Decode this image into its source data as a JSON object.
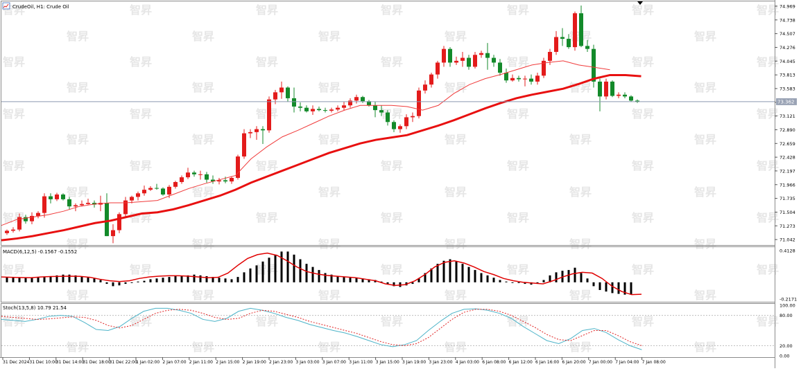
{
  "colors": {
    "up": "#e31b1b",
    "down": "#138a2a",
    "ma_slow": "#e81010",
    "ma_fast": "#f03a3a",
    "macd_hist": "#000000",
    "macd_signal": "#e00000",
    "stoch_main": "#4bb3c8",
    "stoch_signal": "#e02020",
    "grid": "#bcbcbc",
    "price_line": "#8a96b0",
    "watermark": "#e6e6e6"
  },
  "title": "CrudeOil, H1:  Crude Oil",
  "watermark": "智昇",
  "price_tag": "73.362",
  "price_ticks": [
    "74.969",
    "74.738",
    "74.507",
    "74.276",
    "74.045",
    "73.813",
    "73.583",
    "73.352",
    "73.121",
    "72.890",
    "72.659",
    "72.428",
    "72.197",
    "71.966",
    "71.735",
    "71.504",
    "71.273",
    "71.042"
  ],
  "macd_label": "MACD(6,12,5) -0.1567 -0.1552",
  "macd_ticks": [
    "0.4128",
    "-0.2171"
  ],
  "stoch_label": "Stoch(13,5,8) 10.79 21.54",
  "stoch_ticks": [
    "100.00",
    "80.00",
    "20.00",
    "0.00"
  ],
  "time_labels": [
    "31 Dec 2024",
    "31 Dec 10:00",
    "31 Dec 14:00",
    "31 Dec 18:00",
    "31 Dec 22:00",
    "1 Jan 02:00",
    "2 Jan 07:00",
    "2 Jan 11:00",
    "2 Jan 15:00",
    "2 Jan 19:00",
    "2 Jan 23:00",
    "3 Jan 03:00",
    "3 Jan 07:00",
    "3 Jan 11:00",
    "3 Jan 15:00",
    "3 Jan 19:00",
    "3 Jan 23:00",
    "4 Jan 03:00",
    "6 Jan 08:00",
    "6 Jan 12:00",
    "6 Jan 16:00",
    "6 Jan 20:00",
    "7 Jan 00:00",
    "7 Jan 04:00",
    "7 Jan 08:00"
  ],
  "chart_data": [
    {
      "type": "candlestick",
      "title": "CrudeOil, H1:  Crude Oil",
      "ylim": [
        70.95,
        75.05
      ],
      "current_price": 73.362,
      "candles": [
        [
          71.15,
          71.21,
          71.12,
          71.19
        ],
        [
          71.19,
          71.25,
          71.16,
          71.21
        ],
        [
          71.21,
          71.48,
          71.18,
          71.42
        ],
        [
          71.42,
          71.46,
          71.31,
          71.35
        ],
        [
          71.35,
          71.5,
          71.3,
          71.44
        ],
        [
          71.44,
          71.52,
          71.4,
          71.49
        ],
        [
          71.49,
          71.82,
          71.41,
          71.77
        ],
        [
          71.77,
          71.82,
          71.65,
          71.72
        ],
        [
          71.72,
          71.83,
          71.69,
          71.8
        ],
        [
          71.8,
          71.82,
          71.7,
          71.72
        ],
        [
          71.72,
          71.76,
          71.55,
          71.6
        ],
        [
          71.6,
          71.65,
          71.52,
          71.62
        ],
        [
          71.62,
          71.7,
          71.6,
          71.64
        ],
        [
          71.64,
          71.73,
          71.63,
          71.66
        ],
        [
          71.66,
          71.7,
          71.58,
          71.63
        ],
        [
          71.63,
          71.78,
          71.52,
          71.66
        ],
        [
          71.66,
          71.82,
          71.1,
          71.1
        ],
        [
          71.1,
          71.3,
          70.98,
          71.2
        ],
        [
          71.2,
          71.5,
          71.15,
          71.47
        ],
        [
          71.47,
          71.76,
          71.42,
          71.7
        ],
        [
          71.7,
          71.78,
          71.65,
          71.76
        ],
        [
          71.76,
          71.85,
          71.7,
          71.82
        ],
        [
          71.82,
          71.95,
          71.78,
          71.88
        ],
        [
          71.88,
          71.94,
          71.86,
          71.91
        ],
        [
          71.91,
          71.98,
          71.88,
          71.9
        ],
        [
          71.9,
          71.92,
          71.78,
          71.8
        ],
        [
          71.8,
          71.96,
          71.74,
          71.93
        ],
        [
          71.93,
          72.03,
          71.9,
          72.01
        ],
        [
          72.01,
          72.12,
          71.98,
          72.09
        ],
        [
          72.09,
          72.25,
          72.06,
          72.17
        ],
        [
          72.17,
          72.2,
          72.1,
          72.14
        ],
        [
          72.14,
          72.2,
          72.05,
          72.14
        ],
        [
          72.14,
          72.18,
          72.0,
          72.05
        ],
        [
          72.05,
          72.12,
          71.98,
          72.02
        ],
        [
          72.02,
          72.08,
          71.97,
          72.04
        ],
        [
          72.04,
          72.1,
          71.99,
          72.02
        ],
        [
          72.02,
          72.1,
          71.98,
          72.08
        ],
        [
          72.08,
          72.47,
          72.05,
          72.44
        ],
        [
          72.44,
          72.9,
          72.4,
          72.83
        ],
        [
          72.83,
          72.9,
          72.75,
          72.85
        ],
        [
          72.85,
          72.95,
          72.72,
          72.9
        ],
        [
          72.9,
          72.95,
          72.65,
          72.88
        ],
        [
          72.88,
          73.45,
          72.84,
          73.4
        ],
        [
          73.4,
          73.56,
          73.32,
          73.52
        ],
        [
          73.52,
          73.7,
          73.41,
          73.6
        ],
        [
          73.6,
          73.62,
          73.36,
          73.42
        ],
        [
          73.42,
          73.6,
          73.18,
          73.28
        ],
        [
          73.28,
          73.35,
          73.2,
          73.26
        ],
        [
          73.26,
          73.3,
          73.18,
          73.2
        ],
        [
          73.2,
          73.3,
          73.14,
          73.24
        ],
        [
          73.24,
          73.28,
          73.2,
          73.22
        ],
        [
          73.22,
          73.26,
          73.18,
          73.21
        ],
        [
          73.21,
          73.26,
          73.18,
          73.23
        ],
        [
          73.23,
          73.3,
          73.2,
          73.26
        ],
        [
          73.26,
          73.36,
          73.22,
          73.3
        ],
        [
          73.3,
          73.42,
          73.26,
          73.38
        ],
        [
          73.38,
          73.48,
          73.33,
          73.44
        ],
        [
          73.44,
          73.46,
          73.34,
          73.37
        ],
        [
          73.37,
          73.39,
          73.28,
          73.3
        ],
        [
          73.3,
          73.36,
          73.1,
          73.22
        ],
        [
          73.22,
          73.3,
          73.12,
          73.18
        ],
        [
          73.18,
          73.22,
          72.96,
          73.02
        ],
        [
          73.02,
          73.05,
          72.85,
          72.9
        ],
        [
          72.9,
          72.98,
          72.84,
          72.95
        ],
        [
          72.95,
          73.15,
          72.9,
          73.1
        ],
        [
          73.1,
          73.18,
          73.02,
          73.12
        ],
        [
          73.12,
          73.6,
          73.08,
          73.55
        ],
        [
          73.55,
          73.72,
          73.5,
          73.65
        ],
        [
          73.65,
          73.85,
          73.6,
          73.82
        ],
        [
          73.82,
          74.05,
          73.75,
          74.02
        ],
        [
          74.02,
          74.3,
          73.95,
          74.25
        ],
        [
          74.25,
          74.28,
          73.95,
          74.02
        ],
        [
          74.02,
          74.12,
          73.98,
          74.05
        ],
        [
          74.05,
          74.2,
          73.95,
          74.1
        ],
        [
          74.1,
          74.15,
          73.9,
          73.95
        ],
        [
          73.95,
          74.2,
          73.92,
          74.15
        ],
        [
          74.15,
          74.22,
          74.1,
          74.18
        ],
        [
          74.18,
          74.35,
          73.9,
          74.1
        ],
        [
          74.1,
          74.15,
          73.95,
          74.02
        ],
        [
          74.02,
          74.08,
          73.8,
          73.85
        ],
        [
          73.85,
          73.92,
          73.68,
          73.72
        ],
        [
          73.72,
          73.82,
          73.7,
          73.76
        ],
        [
          73.76,
          73.8,
          73.7,
          73.74
        ],
        [
          73.74,
          73.8,
          73.62,
          73.75
        ],
        [
          73.75,
          73.82,
          73.65,
          73.7
        ],
        [
          73.7,
          73.85,
          73.65,
          73.8
        ],
        [
          73.8,
          74.1,
          73.76,
          74.05
        ],
        [
          74.05,
          74.25,
          73.98,
          74.2
        ],
        [
          74.2,
          74.55,
          74.15,
          74.45
        ],
        [
          74.45,
          74.6,
          74.3,
          74.42
        ],
        [
          74.42,
          74.5,
          74.25,
          74.28
        ],
        [
          74.28,
          74.88,
          74.22,
          74.85
        ],
        [
          74.85,
          74.98,
          74.28,
          74.3
        ],
        [
          74.3,
          74.4,
          74.2,
          74.25
        ],
        [
          74.25,
          74.32,
          73.6,
          73.7
        ],
        [
          73.7,
          73.75,
          73.2,
          73.45
        ],
        [
          73.45,
          73.75,
          73.4,
          73.7
        ],
        [
          73.7,
          73.72,
          73.44,
          73.46
        ],
        [
          73.46,
          73.52,
          73.42,
          73.48
        ],
        [
          73.48,
          73.52,
          73.42,
          73.45
        ],
        [
          73.45,
          73.47,
          73.36,
          73.38
        ],
        [
          73.38,
          73.4,
          73.34,
          73.36
        ]
      ],
      "series": [
        {
          "name": "MA20",
          "values": [
            71.28,
            71.38,
            71.42,
            71.46,
            71.52,
            71.6,
            71.64,
            71.66,
            71.66,
            71.68,
            71.7,
            71.8,
            71.9,
            71.98,
            72.05,
            72.12,
            72.4,
            72.6,
            72.77,
            72.88,
            73.0,
            73.12,
            73.22,
            73.3,
            73.3,
            73.3,
            73.28,
            73.22,
            73.3,
            73.5,
            73.65,
            73.75,
            73.82,
            73.9,
            73.98,
            74.02,
            74.05,
            73.98,
            73.94,
            73.9
          ]
        },
        {
          "name": "MA50",
          "values": [
            71.03,
            71.06,
            71.1,
            71.15,
            71.2,
            71.26,
            71.32,
            71.36,
            71.42,
            71.48,
            71.5,
            71.55,
            71.62,
            71.7,
            71.78,
            71.88,
            72.0,
            72.1,
            72.2,
            72.3,
            72.4,
            72.5,
            72.58,
            72.66,
            72.72,
            72.76,
            72.8,
            72.88,
            72.96,
            73.05,
            73.15,
            73.25,
            73.34,
            73.42,
            73.48,
            73.53,
            73.58,
            73.66,
            73.75,
            73.81,
            73.81,
            73.79
          ]
        }
      ]
    },
    {
      "type": "bar",
      "title": "MACD(6,12,5)",
      "macd": -0.1567,
      "signal_value": -0.1552,
      "ylim": [
        -0.2171,
        0.4128
      ],
      "histogram": [
        0.07,
        0.06,
        0.06,
        0.06,
        0.06,
        0.07,
        0.07,
        0.08,
        0.09,
        0.1,
        0.1,
        0.09,
        0.08,
        0.07,
        0.05,
        0.03,
        -0.02,
        -0.05,
        -0.04,
        -0.02,
        0.0,
        0.01,
        0.02,
        0.04,
        0.05,
        0.06,
        0.07,
        0.08,
        0.08,
        0.09,
        0.1,
        0.09,
        0.08,
        0.07,
        0.06,
        0.05,
        0.04,
        0.07,
        0.13,
        0.18,
        0.22,
        0.27,
        0.32,
        0.36,
        0.4,
        0.4,
        0.36,
        0.3,
        0.24,
        0.2,
        0.16,
        0.12,
        0.1,
        0.08,
        0.07,
        0.06,
        0.06,
        0.05,
        0.04,
        0.03,
        0.01,
        -0.02,
        -0.05,
        -0.06,
        -0.04,
        -0.02,
        0.05,
        0.12,
        0.18,
        0.24,
        0.28,
        0.3,
        0.27,
        0.24,
        0.2,
        0.16,
        0.12,
        0.09,
        0.06,
        0.03,
        0.01,
        0.0,
        -0.01,
        -0.02,
        -0.03,
        -0.01,
        0.03,
        0.09,
        0.13,
        0.15,
        0.16,
        0.19,
        0.12,
        0.05,
        -0.05,
        -0.1,
        -0.12,
        -0.14,
        -0.15,
        -0.16,
        -0.16
      ],
      "signal": [
        0.07,
        0.065,
        0.062,
        0.06,
        0.07,
        0.075,
        0.078,
        0.08,
        0.078,
        0.065,
        0.04,
        0.02,
        0.01,
        0.02,
        0.05,
        0.07,
        0.08,
        0.085,
        0.085,
        0.08,
        0.07,
        0.06,
        0.065,
        0.12,
        0.22,
        0.31,
        0.36,
        0.38,
        0.35,
        0.28,
        0.2,
        0.14,
        0.11,
        0.09,
        0.08,
        0.07,
        0.06,
        0.04,
        0.02,
        -0.02,
        -0.04,
        -0.03,
        0.02,
        0.1,
        0.2,
        0.26,
        0.28,
        0.25,
        0.2,
        0.14,
        0.1,
        0.05,
        0.02,
        0.0,
        -0.01,
        -0.02,
        0.02,
        0.07,
        0.11,
        0.13,
        0.12,
        0.05,
        -0.05,
        -0.12,
        -0.16,
        -0.155
      ]
    },
    {
      "type": "line",
      "title": "Stoch(13,5,8)",
      "main_value": 10.79,
      "signal_value": 21.54,
      "ylim": [
        0,
        100
      ],
      "levels": [
        80,
        20
      ],
      "series": [
        {
          "name": "Main",
          "values": [
            72,
            70,
            68,
            72,
            78,
            80,
            78,
            66,
            52,
            50,
            58,
            74,
            88,
            94,
            94,
            90,
            84,
            72,
            68,
            74,
            88,
            94,
            90,
            84,
            76,
            70,
            62,
            56,
            50,
            45,
            38,
            30,
            22,
            18,
            22,
            30,
            50,
            68,
            84,
            92,
            93,
            90,
            84,
            74,
            58,
            44,
            30,
            24,
            34,
            50,
            54,
            46,
            32,
            20,
            12
          ]
        },
        {
          "name": "Signal",
          "values": [
            78,
            76,
            74,
            72,
            73,
            75,
            77,
            76,
            70,
            60,
            55,
            60,
            72,
            84,
            90,
            92,
            90,
            84,
            76,
            72,
            74,
            84,
            90,
            88,
            82,
            76,
            68,
            62,
            56,
            50,
            44,
            36,
            28,
            22,
            20,
            24,
            36,
            54,
            72,
            86,
            92,
            92,
            88,
            80,
            68,
            56,
            42,
            32,
            30,
            40,
            50,
            50,
            40,
            28,
            20
          ]
        }
      ]
    }
  ]
}
